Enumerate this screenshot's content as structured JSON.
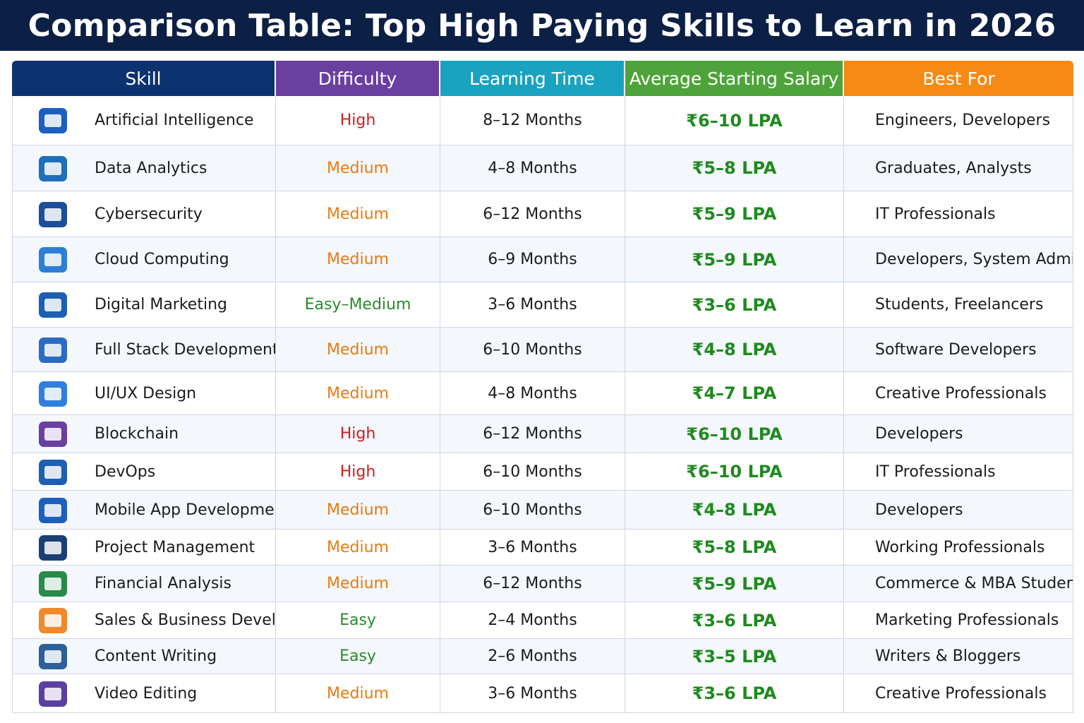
{
  "header": {
    "title": "Comparison Table: Top High Paying Skills to Learn in 2026"
  },
  "table": {
    "columns": [
      {
        "label": "Skill",
        "color": "#0d3270"
      },
      {
        "label": "Difficulty",
        "color": "#6a3fa0"
      },
      {
        "label": "Learning Time",
        "color": "#1aa3c0"
      },
      {
        "label": "Average Starting Salary",
        "color": "#4ea43a"
      },
      {
        "label": "Best For",
        "color": "#f68a14"
      }
    ],
    "rows": [
      {
        "skill": "Artificial Intelligence",
        "difficulty": "High",
        "difficulty_color": "#d01c1c",
        "learning_time": "8–12 Months",
        "salary": "₹6–10 LPA",
        "best_for": "Engineers, Developers"
      },
      {
        "skill": "Data Analytics",
        "difficulty": "Medium",
        "difficulty_color": "#e87a10",
        "learning_time": "4–8 Months",
        "salary": "₹5–8 LPA",
        "best_for": "Graduates, Analysts"
      },
      {
        "skill": "Cybersecurity",
        "difficulty": "Medium",
        "difficulty_color": "#e87a10",
        "learning_time": "6–12 Months",
        "salary": "₹5–9 LPA",
        "best_for": "IT Professionals"
      },
      {
        "skill": "Cloud Computing",
        "difficulty": "Medium",
        "difficulty_color": "#e87a10",
        "learning_time": "6–9 Months",
        "salary": "₹5–9 LPA",
        "best_for": "Developers, System Admins"
      },
      {
        "skill": "Digital Marketing",
        "difficulty": "Easy–Medium",
        "difficulty_color": "#2a8a2a",
        "learning_time": "3–6 Months",
        "salary": "₹3–6 LPA",
        "best_for": "Students, Freelancers"
      },
      {
        "skill": "Full Stack Development",
        "difficulty": "Medium",
        "difficulty_color": "#e87a10",
        "learning_time": "6–10 Months",
        "salary": "₹4–8 LPA",
        "best_for": "Software Developers"
      },
      {
        "skill": "UI/UX Design",
        "difficulty": "Medium",
        "difficulty_color": "#e87a10",
        "learning_time": "4–8 Months",
        "salary": "₹4–7 LPA",
        "best_for": "Creative Professionals"
      },
      {
        "skill": "Blockchain",
        "difficulty": "High",
        "difficulty_color": "#d01c1c",
        "learning_time": "6–12 Months",
        "salary": "₹6–10 LPA",
        "best_for": "Developers"
      },
      {
        "skill": "DevOps",
        "difficulty": "High",
        "difficulty_color": "#d01c1c",
        "learning_time": "6–10 Months",
        "salary": "₹6–10 LPA",
        "best_for": "IT Professionals"
      },
      {
        "skill": "Mobile App Development",
        "difficulty": "Medium",
        "difficulty_color": "#e87a10",
        "learning_time": "6–10 Months",
        "salary": "₹4–8 LPA",
        "best_for": "Developers"
      },
      {
        "skill": "Project Management",
        "difficulty": "Medium",
        "difficulty_color": "#e87a10",
        "learning_time": "3–6 Months",
        "salary": "₹5–8 LPA",
        "best_for": "Working Professionals"
      },
      {
        "skill": "Financial Analysis",
        "difficulty": "Medium",
        "difficulty_color": "#e87a10",
        "learning_time": "6–12 Months",
        "salary": "₹5–9 LPA",
        "best_for": "Commerce & MBA Students"
      },
      {
        "skill": "Sales & Business Development",
        "difficulty": "Easy",
        "difficulty_color": "#2a8a2a",
        "learning_time": "2–4 Months",
        "salary": "₹3–6 LPA",
        "best_for": "Marketing Professionals"
      },
      {
        "skill": "Content Writing",
        "difficulty": "Easy",
        "difficulty_color": "#2a8a2a",
        "learning_time": "2–6 Months",
        "salary": "₹3–5 LPA",
        "best_for": "Writers & Bloggers"
      },
      {
        "skill": "Video Editing",
        "difficulty": "Medium",
        "difficulty_color": "#e87a10",
        "learning_time": "3–6 Months",
        "salary": "₹3–6 LPA",
        "best_for": "Creative Professionals"
      }
    ]
  }
}
